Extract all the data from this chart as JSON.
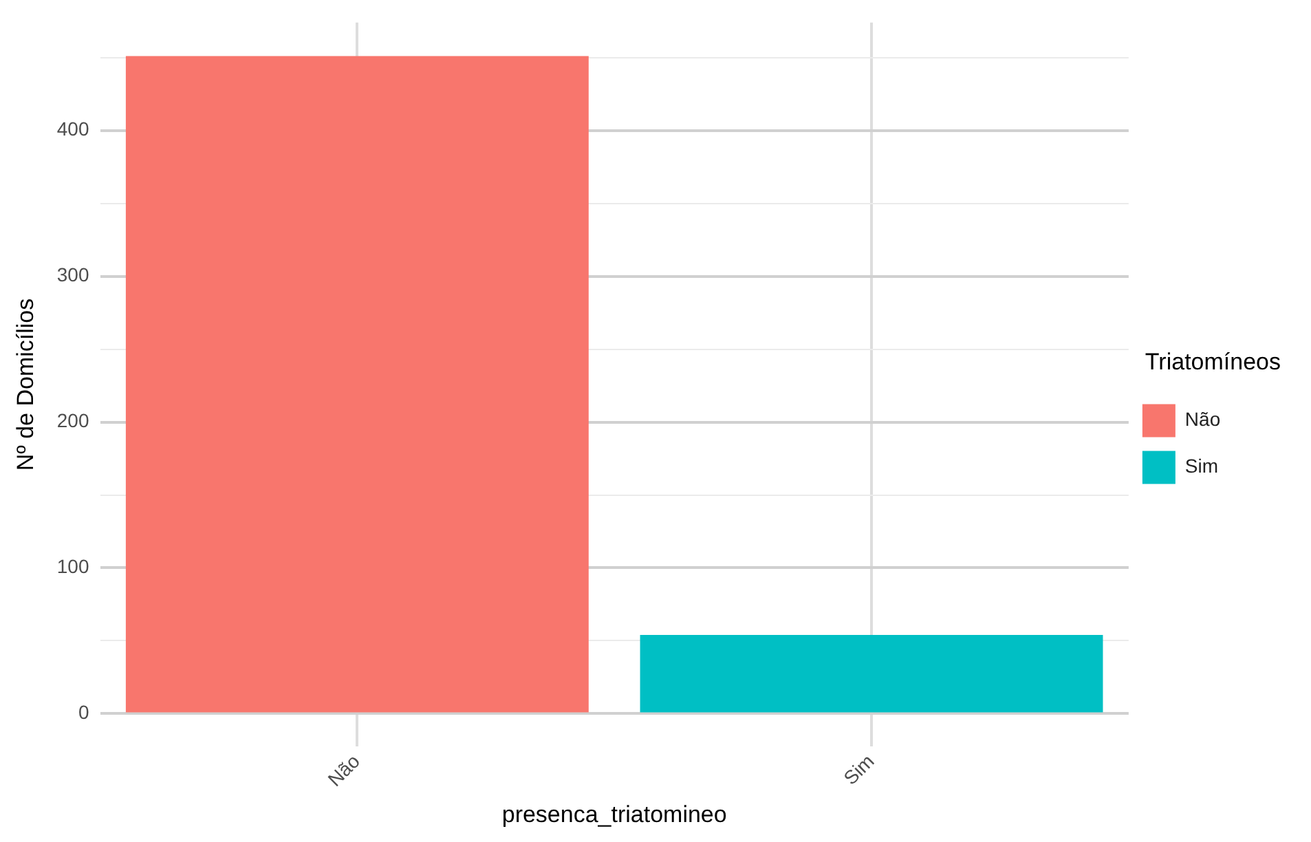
{
  "chart_data": {
    "type": "bar",
    "xlabel": "presenca_triatomineo",
    "ylabel": "Nº de Domicílios",
    "legend_title": "Triatomíneos",
    "categories": [
      "Não",
      "Sim"
    ],
    "series": [
      {
        "name": "Não",
        "color": "#f8766d",
        "values": [
          451,
          null
        ]
      },
      {
        "name": "Sim",
        "color": "#00bfc4",
        "values": [
          null,
          54
        ]
      }
    ],
    "ylim": [
      -22.5,
      474
    ],
    "yticks": [
      0,
      {
        "value": 50,
        "label": null
      },
      100,
      {
        "value": 150,
        "label": null
      },
      200,
      {
        "value": 250,
        "label": null
      },
      300,
      {
        "value": 350,
        "label": null
      },
      400,
      {
        "value": 450,
        "label": null
      }
    ],
    "grid": true,
    "legend": "right"
  }
}
